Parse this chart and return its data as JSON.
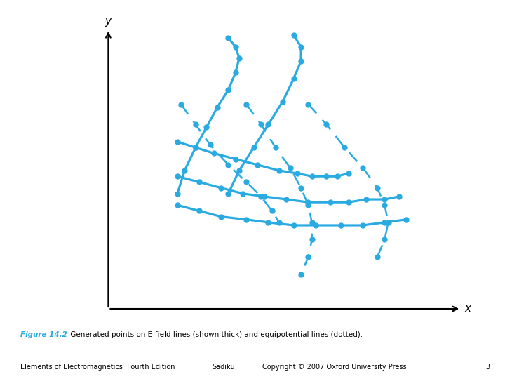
{
  "color": "#29ABE2",
  "bg_color": "#ffffff",
  "fig_label_color": "#29ABE2",
  "fig_label": "Figure 14.2",
  "caption": " Generated points on E-field lines (shown thick) and equipotential lines (dotted).",
  "footer_left": "Elements of Electromagnetics  Fourth Edition",
  "footer_mid": "Sadiku",
  "footer_right": "Copyright © 2007 Oxford University Press",
  "footer_num": "3",
  "efield_lines": [
    {
      "x": [
        0.21,
        0.23,
        0.26,
        0.29,
        0.32,
        0.35,
        0.37,
        0.38,
        0.37,
        0.35
      ],
      "y": [
        0.42,
        0.5,
        0.58,
        0.65,
        0.72,
        0.78,
        0.84,
        0.89,
        0.93,
        0.96
      ]
    },
    {
      "x": [
        0.35,
        0.38,
        0.42,
        0.46,
        0.5,
        0.53,
        0.55,
        0.55,
        0.53
      ],
      "y": [
        0.42,
        0.5,
        0.58,
        0.66,
        0.74,
        0.82,
        0.88,
        0.93,
        0.97
      ]
    },
    {
      "x": [
        0.21,
        0.26,
        0.31,
        0.37,
        0.43,
        0.49,
        0.54,
        0.58,
        0.62,
        0.65,
        0.68
      ],
      "y": [
        0.6,
        0.58,
        0.56,
        0.54,
        0.52,
        0.5,
        0.49,
        0.48,
        0.48,
        0.48,
        0.49
      ]
    },
    {
      "x": [
        0.21,
        0.27,
        0.33,
        0.39,
        0.45,
        0.51,
        0.57,
        0.63,
        0.68,
        0.73,
        0.78,
        0.82
      ],
      "y": [
        0.48,
        0.46,
        0.44,
        0.42,
        0.41,
        0.4,
        0.39,
        0.39,
        0.39,
        0.4,
        0.4,
        0.41
      ]
    },
    {
      "x": [
        0.21,
        0.27,
        0.33,
        0.4,
        0.46,
        0.53,
        0.59,
        0.66,
        0.72,
        0.78,
        0.84
      ],
      "y": [
        0.38,
        0.36,
        0.34,
        0.33,
        0.32,
        0.31,
        0.31,
        0.31,
        0.31,
        0.32,
        0.33
      ]
    }
  ],
  "equip_lines": [
    {
      "x": [
        0.22,
        0.26,
        0.3,
        0.35,
        0.4,
        0.44,
        0.47,
        0.49
      ],
      "y": [
        0.73,
        0.66,
        0.59,
        0.52,
        0.46,
        0.41,
        0.36,
        0.32
      ]
    },
    {
      "x": [
        0.4,
        0.44,
        0.48,
        0.52,
        0.55,
        0.57,
        0.58,
        0.58,
        0.57,
        0.55
      ],
      "y": [
        0.73,
        0.66,
        0.58,
        0.51,
        0.44,
        0.38,
        0.32,
        0.26,
        0.2,
        0.14
      ]
    },
    {
      "x": [
        0.57,
        0.62,
        0.67,
        0.72,
        0.76,
        0.78,
        0.79,
        0.78,
        0.76
      ],
      "y": [
        0.73,
        0.66,
        0.58,
        0.51,
        0.44,
        0.38,
        0.32,
        0.26,
        0.2
      ]
    }
  ]
}
